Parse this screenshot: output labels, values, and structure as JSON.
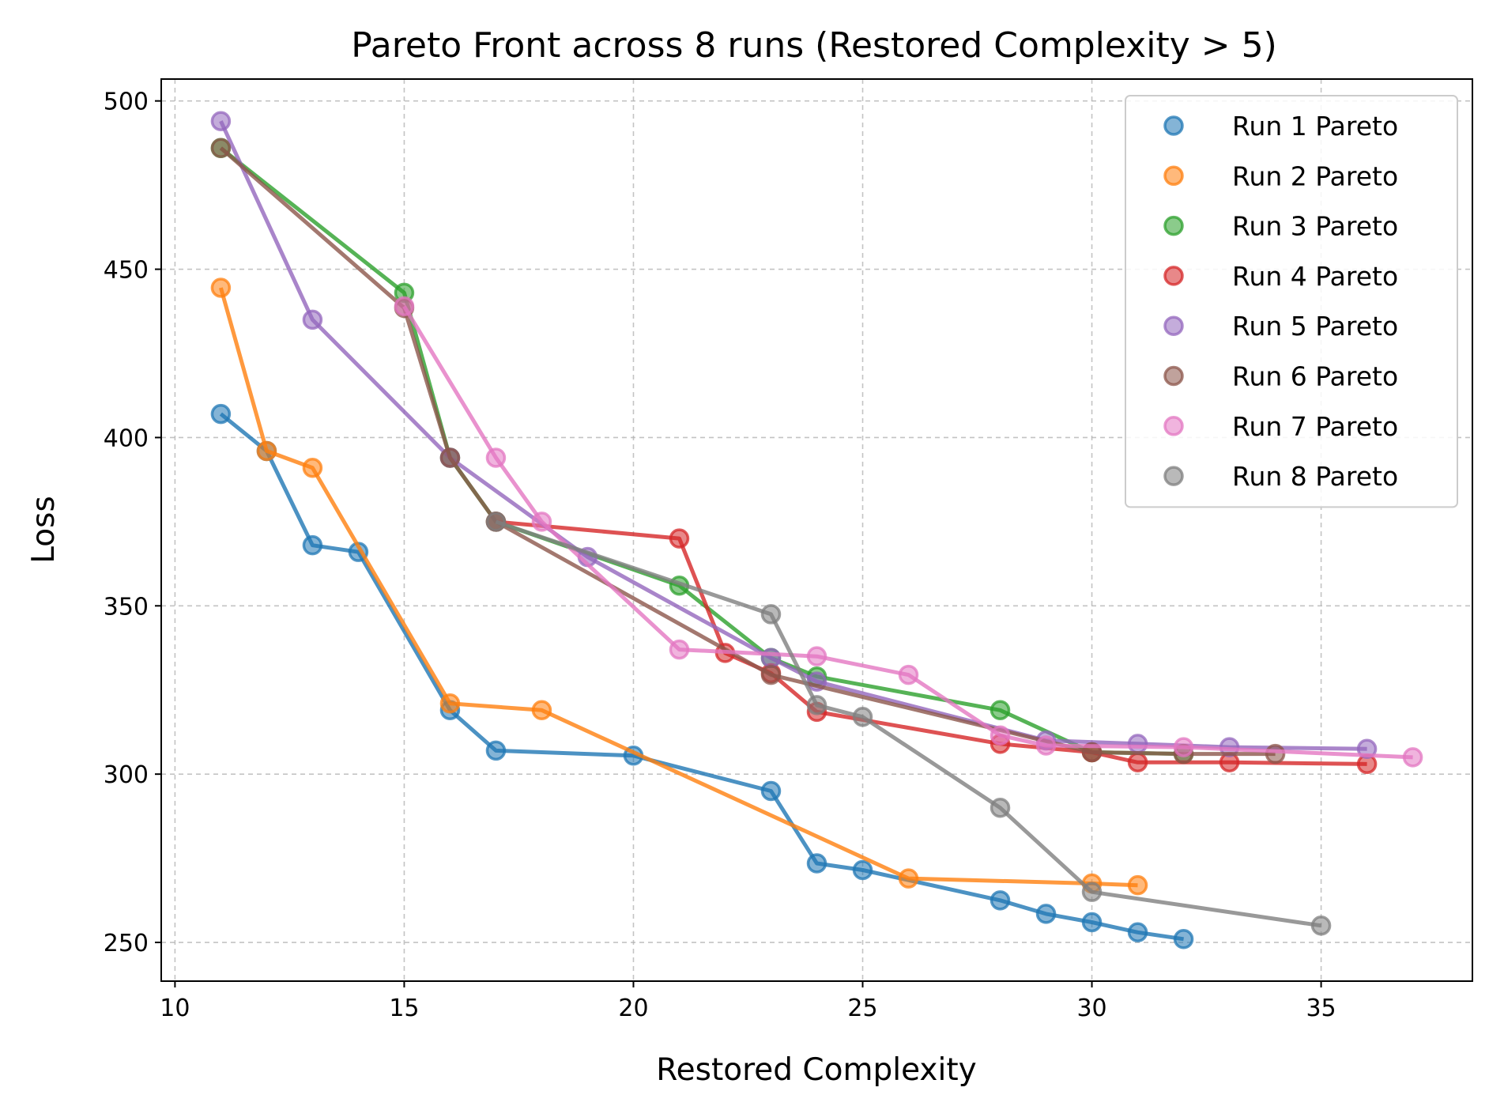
{
  "chart_data": {
    "type": "line",
    "title": "Pareto Front across 8 runs (Restored Complexity > 5)",
    "xlabel": "Restored Complexity",
    "ylabel": "Loss",
    "xlim": [
      9.7,
      38.3
    ],
    "ylim": [
      238.5,
      506.5
    ],
    "xticks": [
      10,
      15,
      20,
      25,
      30,
      35
    ],
    "yticks": [
      250,
      300,
      350,
      400,
      450,
      500
    ],
    "grid": true,
    "legend_position": "top-right",
    "series": [
      {
        "name": "Run 1 Pareto",
        "color": "#1f77b4",
        "x": [
          11,
          12,
          13,
          14,
          16,
          17,
          20,
          23,
          24,
          25,
          28,
          29,
          30,
          31,
          32
        ],
        "y": [
          407,
          396,
          368,
          366,
          319,
          307,
          305.5,
          295,
          273.5,
          271.5,
          262.5,
          258.5,
          256,
          253,
          251
        ]
      },
      {
        "name": "Run 2 Pareto",
        "color": "#ff7f0e",
        "x": [
          11,
          12,
          13,
          16,
          18,
          26,
          30,
          31
        ],
        "y": [
          444.5,
          396,
          391,
          321,
          319,
          269,
          267.5,
          267
        ]
      },
      {
        "name": "Run 3 Pareto",
        "color": "#2ca02c",
        "x": [
          11,
          15,
          16,
          17,
          21,
          23,
          24,
          28,
          30,
          32
        ],
        "y": [
          486,
          443,
          394,
          375,
          356,
          334.5,
          329,
          319,
          306.5,
          306
        ]
      },
      {
        "name": "Run 4 Pareto",
        "color": "#d62728",
        "x": [
          17,
          21,
          22,
          23,
          24,
          28,
          30,
          31,
          33,
          36
        ],
        "y": [
          375,
          370,
          336,
          330,
          318.5,
          309,
          306.5,
          303.5,
          303.5,
          303
        ]
      },
      {
        "name": "Run 5 Pareto",
        "color": "#9467bd",
        "x": [
          11,
          13,
          16,
          19,
          23,
          24,
          29,
          31,
          33,
          36
        ],
        "y": [
          494,
          435,
          394,
          364.5,
          334.5,
          327.5,
          310,
          309,
          308,
          307.5
        ]
      },
      {
        "name": "Run 6 Pareto",
        "color": "#8c564b",
        "x": [
          11,
          15,
          16,
          17,
          23,
          30,
          32,
          34
        ],
        "y": [
          486,
          438.5,
          394,
          375,
          329.5,
          306.5,
          306,
          306
        ]
      },
      {
        "name": "Run 7 Pareto",
        "color": "#e377c2",
        "x": [
          15,
          17,
          18,
          21,
          24,
          26,
          28,
          29,
          32,
          37
        ],
        "y": [
          439,
          394,
          375,
          337,
          335,
          329.5,
          311.5,
          308.5,
          308,
          305
        ]
      },
      {
        "name": "Run 8 Pareto",
        "color": "#7f7f7f",
        "x": [
          17,
          23,
          24,
          25,
          28,
          30,
          35
        ],
        "y": [
          375,
          347.5,
          320.5,
          317,
          290,
          265,
          255
        ]
      }
    ]
  }
}
